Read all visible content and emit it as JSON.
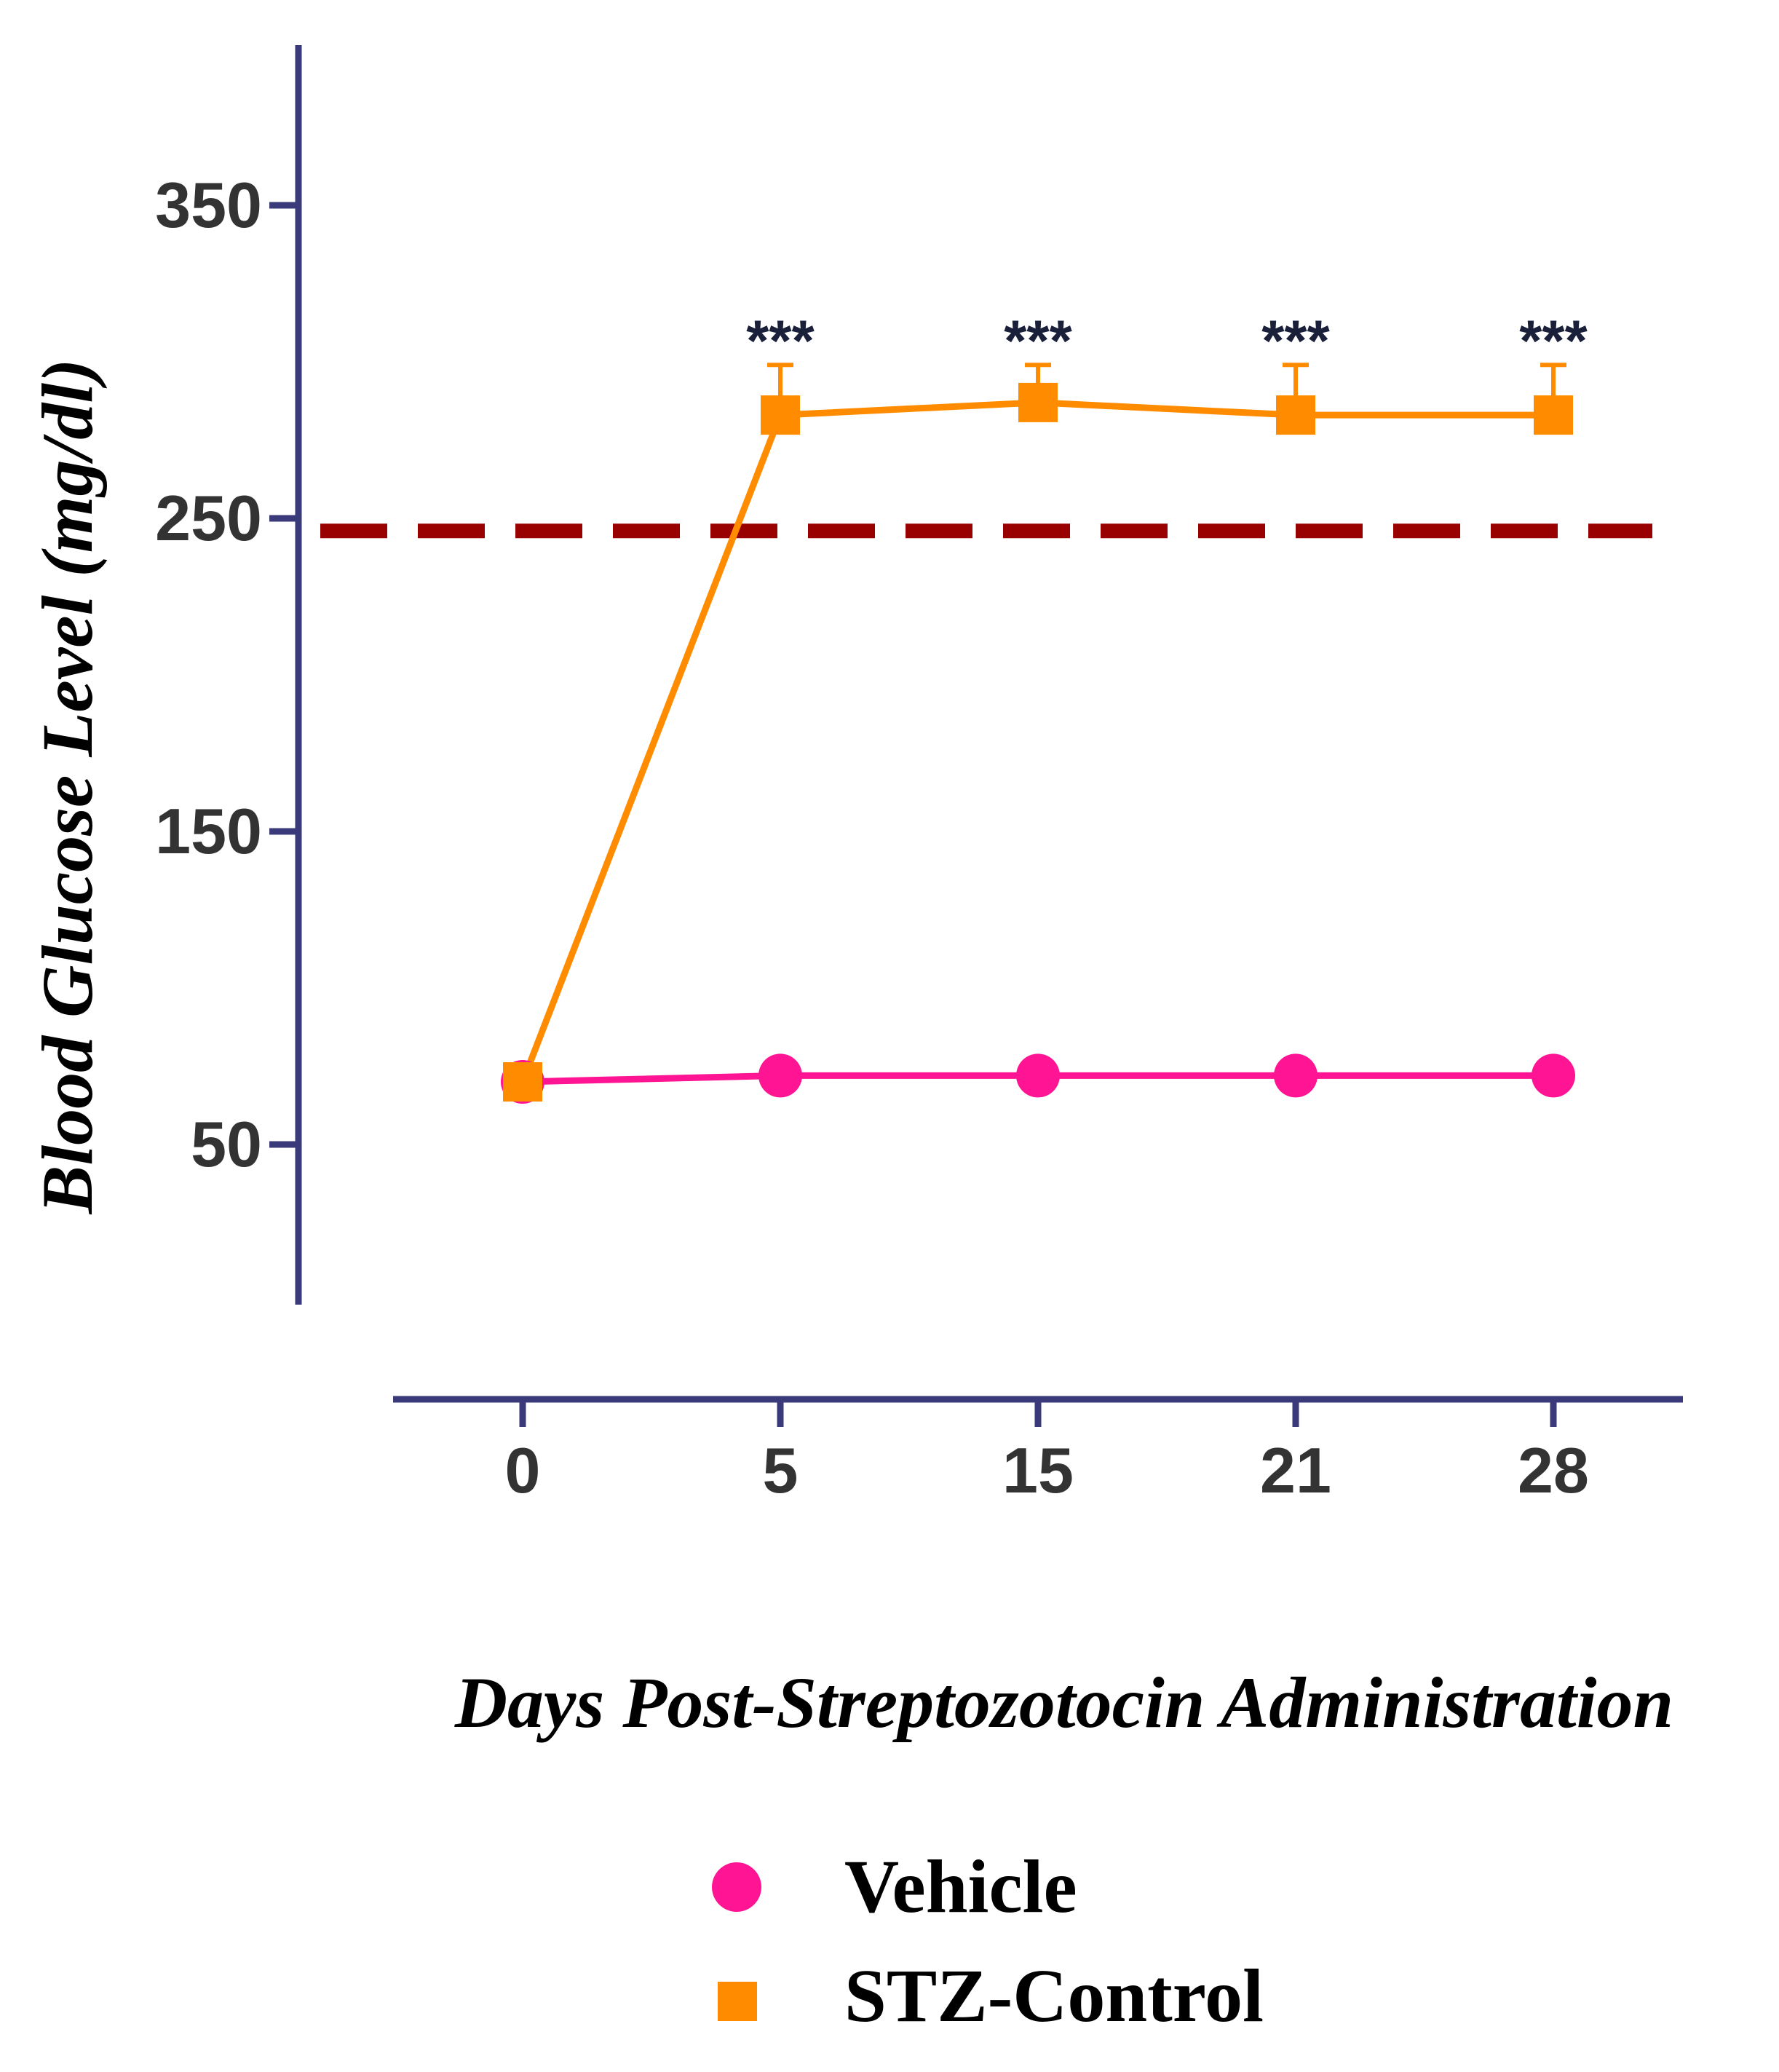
{
  "chart_data": {
    "type": "line",
    "xlabel": "Days Post-Streptozotocin Administration",
    "ylabel": "Blood Glucose Level (mg/dl)",
    "x": [
      "0",
      "5",
      "15",
      "21",
      "28"
    ],
    "y_ticks": [
      50,
      150,
      250,
      350
    ],
    "ylim": [
      0,
      400
    ],
    "x_tick_labels": [
      "0",
      "5",
      "15",
      "21",
      "28"
    ],
    "threshold_line": {
      "value": 246,
      "style": "dashed"
    },
    "series": [
      {
        "name": "Vehicle",
        "marker": "circle",
        "color": "#ff1493",
        "values": [
          70,
          72,
          72,
          72,
          72
        ],
        "error": [
          0,
          0,
          0,
          0,
          0
        ]
      },
      {
        "name": "STZ-Control",
        "marker": "square",
        "color": "#ff8c00",
        "values": [
          70,
          283,
          287,
          283,
          283
        ],
        "error": [
          0,
          16,
          12,
          16,
          16
        ],
        "annotations": [
          "",
          "***",
          "***",
          "***",
          "***"
        ]
      }
    ],
    "legend_position": "bottom",
    "grid": false,
    "colors": {
      "axis": "#3a3a7a",
      "threshold": "#990000"
    }
  }
}
